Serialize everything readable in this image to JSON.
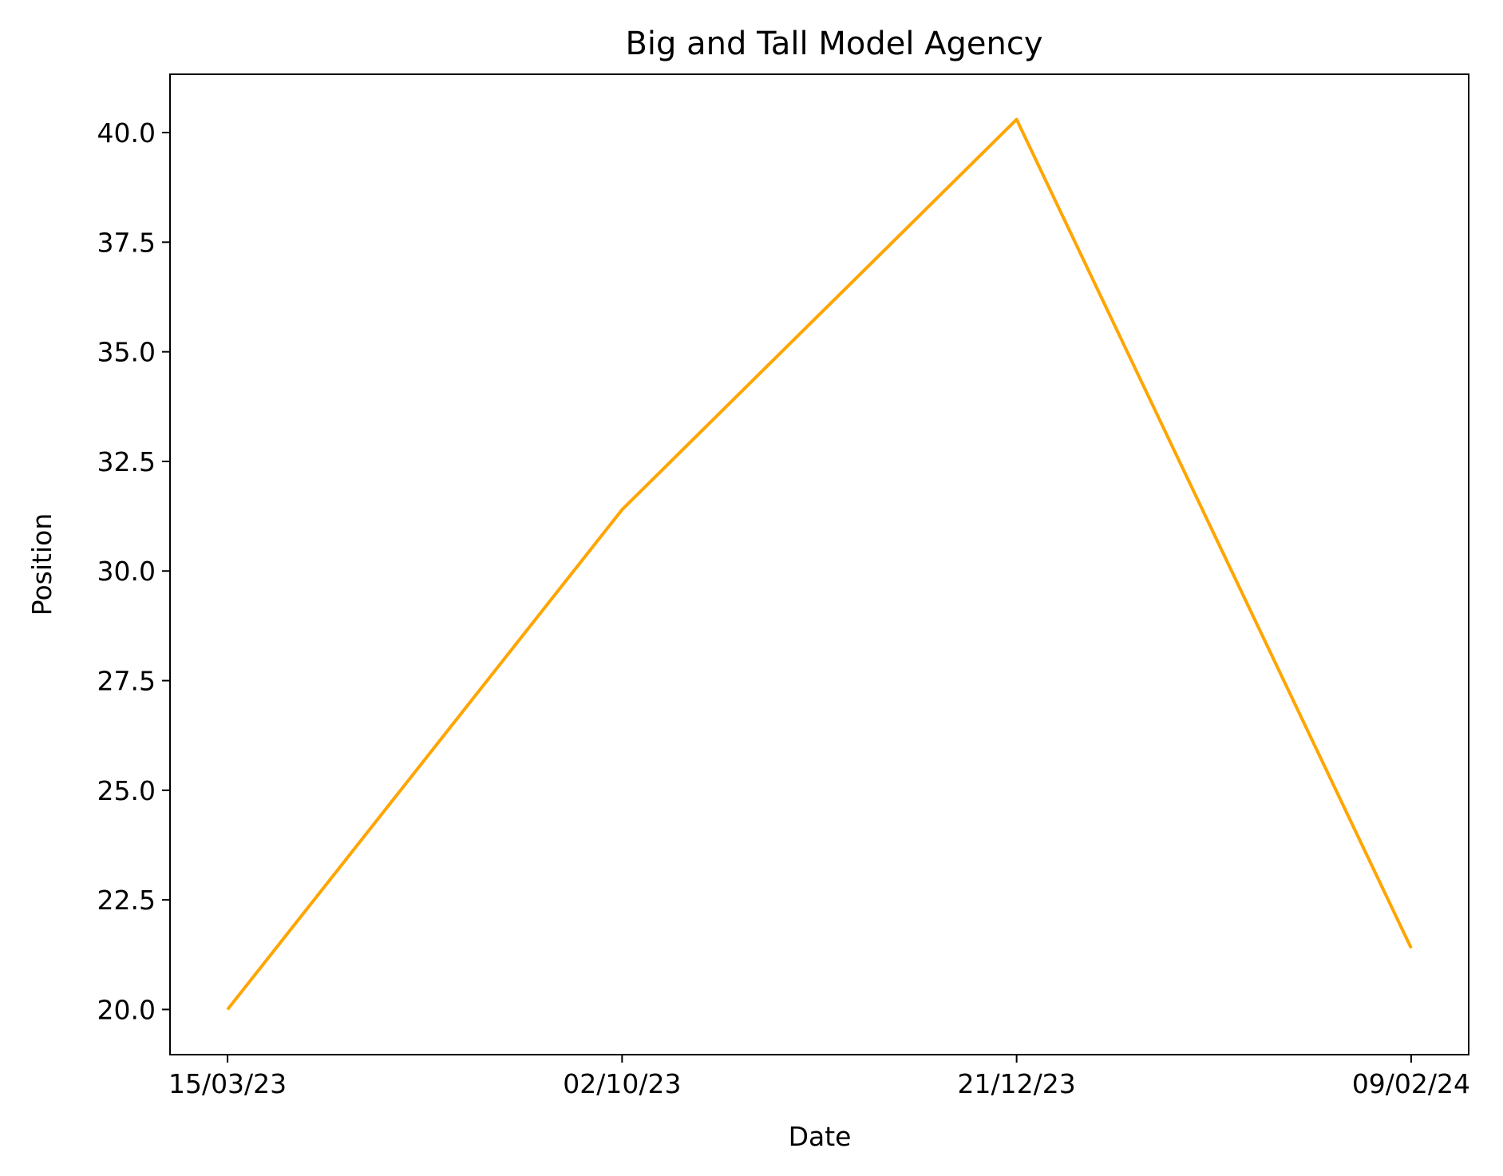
{
  "chart_data": {
    "type": "line",
    "title": "Big and Tall Model Agency",
    "xlabel": "Date",
    "ylabel": "Position",
    "categories": [
      "15/03/23",
      "02/10/23",
      "21/12/23",
      "09/02/24"
    ],
    "series": [
      {
        "values": [
          20.0,
          31.4,
          40.3,
          21.4
        ],
        "color": "#FFA500"
      }
    ],
    "ylim": [
      18.97,
      41.33
    ],
    "yticks": [
      20.0,
      22.5,
      25.0,
      27.5,
      30.0,
      32.5,
      35.0,
      37.5,
      40.0
    ],
    "ytick_labels": [
      "20.0",
      "22.5",
      "25.0",
      "27.5",
      "30.0",
      "32.5",
      "35.0",
      "37.5",
      "40.0"
    ],
    "grid": false
  }
}
